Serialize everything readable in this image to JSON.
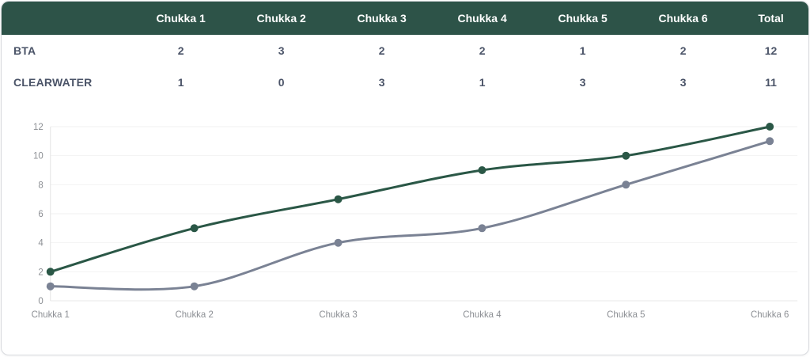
{
  "table": {
    "corner_label": "",
    "header_cols": [
      "Chukka 1",
      "Chukka 2",
      "Chukka 3",
      "Chukka 4",
      "Chukka 5",
      "Chukka 6",
      "Total"
    ],
    "rows": [
      {
        "team": "BTA",
        "cells": [
          2,
          3,
          2,
          2,
          1,
          2,
          12
        ]
      },
      {
        "team": "CLEARWATER",
        "cells": [
          1,
          0,
          3,
          1,
          3,
          3,
          11
        ]
      }
    ]
  },
  "chart_data": {
    "type": "line",
    "title": "",
    "x": [
      "Chukka 1",
      "Chukka 2",
      "Chukka 3",
      "Chukka 4",
      "Chukka 5",
      "Chukka 6"
    ],
    "series": [
      {
        "name": "BTA",
        "values": [
          2,
          5,
          7,
          9,
          10,
          12
        ],
        "color": "#2a5746"
      },
      {
        "name": "CLEARWATER",
        "values": [
          1,
          1,
          4,
          5,
          8,
          11
        ],
        "color": "#7a8294"
      }
    ],
    "xlabel": "",
    "ylabel": "",
    "ylim": [
      0,
      12
    ],
    "yticks": [
      0,
      2,
      4,
      6,
      8,
      10,
      12
    ],
    "grid": true,
    "legend_position": "none",
    "smooth": true
  },
  "colors": {
    "header_bg": "#2d5348",
    "header_text": "#ffffff",
    "row_text": "#4b5468",
    "gridline": "#f2f2f2",
    "zero_line": "#e9e9e9",
    "axis_line": "#e4e4e4",
    "tick_text": "#8c8f94"
  }
}
